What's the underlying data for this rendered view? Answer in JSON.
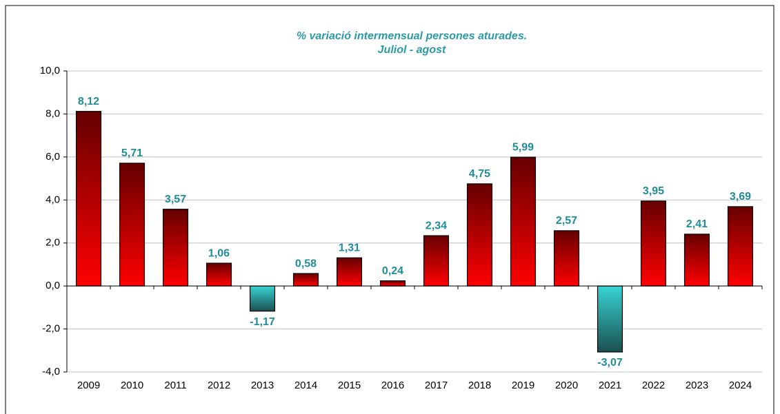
{
  "chart_data": {
    "type": "bar",
    "title": "% variació intermensual persones aturades.",
    "subtitle": "Juliol - agost",
    "categories": [
      "2009",
      "2010",
      "2011",
      "2012",
      "2013",
      "2014",
      "2015",
      "2016",
      "2017",
      "2018",
      "2019",
      "2020",
      "2021",
      "2022",
      "2023",
      "2024"
    ],
    "values": [
      8.12,
      5.71,
      3.57,
      1.06,
      -1.17,
      0.58,
      1.31,
      0.24,
      2.34,
      4.75,
      5.99,
      2.57,
      -3.07,
      3.95,
      2.41,
      3.69
    ],
    "value_labels": [
      "8,12",
      "5,71",
      "3,57",
      "1,06",
      "-1,17",
      "0,58",
      "1,31",
      "0,24",
      "2,34",
      "4,75",
      "5,99",
      "2,57",
      "-3,07",
      "3,95",
      "2,41",
      "3,69"
    ],
    "color": "#ff0000",
    "negative_color": "#33cccc",
    "ylim": [
      -4,
      10
    ],
    "yticks": [
      {
        "value": -4,
        "label": "-4,0"
      },
      {
        "value": -2,
        "label": "-2,0"
      },
      {
        "value": 0,
        "label": "0,0"
      },
      {
        "value": 2,
        "label": "2,0"
      },
      {
        "value": 4,
        "label": "4,0"
      },
      {
        "value": 6,
        "label": "6,0"
      },
      {
        "value": 8,
        "label": "8,0"
      },
      {
        "value": 10,
        "label": "10,0"
      }
    ],
    "grid": true
  }
}
